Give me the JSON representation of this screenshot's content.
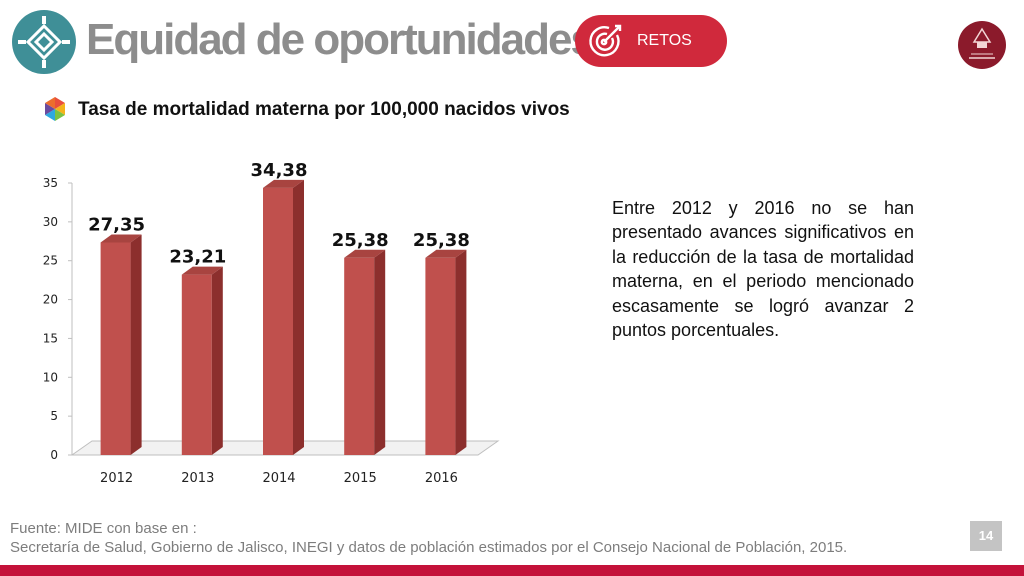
{
  "header": {
    "title": "Equidad de oportunidades",
    "badge_label": "RETOS"
  },
  "section": {
    "title": "Tasa de mortalidad materna por 100,000 nacidos vivos"
  },
  "chart_data": {
    "type": "bar",
    "categories": [
      "2012",
      "2013",
      "2014",
      "2015",
      "2016"
    ],
    "values": [
      27.35,
      23.21,
      34.38,
      25.38,
      25.38
    ],
    "value_labels": [
      "27,35",
      "23,21",
      "34,38",
      "25,38",
      "25,38"
    ],
    "ylim": [
      0,
      35
    ],
    "yticks": [
      "0",
      "5",
      "10",
      "15",
      "20",
      "25",
      "30",
      "35"
    ],
    "bar_color": "#c0504d",
    "grid": false,
    "legend": "none",
    "style": "3d-columns"
  },
  "description": "Entre 2012 y 2016 no se han presentado avances significativos en la reducción de la tasa de mortalidad materna, en el periodo mencionado escasamente se logró avanzar 2 puntos porcentuales.",
  "footer": {
    "source_line1": "Fuente: MIDE con base en :",
    "source_line2": "Secretaría de Salud, Gobierno de Jalisco, INEGI y datos de población estimados por el Consejo Nacional de Población, 2015.",
    "page_number": "14"
  },
  "icons": {
    "logo": "diamond-compass-icon",
    "badge": "target-arrow-icon",
    "emblem": "jalisco-emblem-logo",
    "section": "colorful-hexagon-icon"
  },
  "colors": {
    "logo_teal": "#3f8f97",
    "badge_red": "#d0293c",
    "title_gray": "#8d8d8d",
    "bar_red": "#c0504d",
    "footer_bar": "#c4123a",
    "emblem_red": "#8b1a2b"
  }
}
